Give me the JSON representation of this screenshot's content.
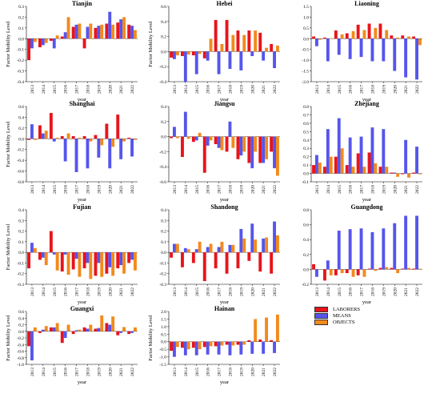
{
  "chart_data": [
    {
      "type": "bar",
      "title": "Tianjin",
      "xlabel": "year",
      "ylabel": "Factor Mobility Level",
      "categories": [
        "2013",
        "2014",
        "2015",
        "2016",
        "2017",
        "2018",
        "2019",
        "2020",
        "2021",
        "2022"
      ],
      "ylim": [
        -0.4,
        0.3
      ],
      "yticks": [
        "-0.4",
        "-0.3",
        "-0.2",
        "-0.1",
        "0.0",
        "0.1",
        "0.2",
        "0.3"
      ],
      "series": [
        {
          "name": "LABORERS",
          "values": [
            -0.2,
            -0.08,
            -0.02,
            0.02,
            0.11,
            -0.09,
            0.1,
            0.14,
            0.15,
            0.13
          ]
        },
        {
          "name": "MEANS",
          "values": [
            -0.09,
            -0.06,
            -0.09,
            0.06,
            0.13,
            0.11,
            0.12,
            0.25,
            0.18,
            0.12
          ]
        },
        {
          "name": "OBJECTS",
          "values": [
            -0.03,
            -0.04,
            0.03,
            0.2,
            0.14,
            0.14,
            0.13,
            0.13,
            0.2,
            0.08
          ]
        }
      ]
    },
    {
      "type": "bar",
      "title": "Hebei",
      "xlabel": "year",
      "ylabel": "Factor Mobility Level",
      "categories": [
        "2013",
        "2014",
        "2015",
        "2016",
        "2017",
        "2018",
        "2019",
        "2020",
        "2021",
        "2022"
      ],
      "ylim": [
        -0.4,
        0.6
      ],
      "yticks": [
        "-0.4",
        "-0.2",
        "0.0",
        "0.2",
        "0.4",
        "0.6"
      ],
      "series": [
        {
          "name": "LABORERS",
          "values": [
            -0.08,
            -0.06,
            -0.05,
            -0.09,
            0.42,
            0.42,
            0.28,
            0.28,
            0.25,
            0.1
          ]
        },
        {
          "name": "MEANS",
          "values": [
            -0.1,
            -0.4,
            -0.3,
            -0.12,
            -0.3,
            -0.23,
            -0.25,
            -0.06,
            -0.12,
            -0.22
          ]
        },
        {
          "name": "OBJECTS",
          "values": [
            -0.05,
            -0.04,
            -0.03,
            0.17,
            0.1,
            0.22,
            0.22,
            0.28,
            0.05,
            0.08
          ]
        }
      ]
    },
    {
      "type": "bar",
      "title": "Liaoning",
      "xlabel": "year",
      "ylabel": "",
      "categories": [
        "2013",
        "2014",
        "2015",
        "2016",
        "2017",
        "2018",
        "2019",
        "2020",
        "2021",
        "2022"
      ],
      "ylim": [
        -2.0,
        1.5
      ],
      "yticks": [
        "-2.0",
        "-1.5",
        "-1.0",
        "-0.5",
        "0.0",
        "0.5",
        "1.0",
        "1.5"
      ],
      "series": [
        {
          "name": "LABORERS",
          "values": [
            0.1,
            0.05,
            0.38,
            0.25,
            0.65,
            0.7,
            0.7,
            0.15,
            0.15,
            0.1
          ]
        },
        {
          "name": "MEANS",
          "values": [
            -0.35,
            -1.05,
            -0.75,
            -0.95,
            -0.85,
            -1.05,
            -1.05,
            -1.5,
            -1.8,
            -1.9
          ]
        },
        {
          "name": "OBJECTS",
          "values": [
            -0.05,
            0.02,
            0.2,
            0.35,
            0.4,
            0.5,
            0.4,
            0.05,
            0.1,
            -0.3
          ]
        }
      ]
    },
    {
      "type": "bar",
      "title": "Shanghai",
      "xlabel": "year",
      "ylabel": "Factor Mobility Level",
      "categories": [
        "2013",
        "2014",
        "2015",
        "2016",
        "2017",
        "2018",
        "2019",
        "2020",
        "2021",
        "2022"
      ],
      "ylim": [
        -0.8,
        0.6
      ],
      "yticks": [
        "-0.8",
        "-0.6",
        "-0.4",
        "-0.2",
        "0.0",
        "0.2",
        "0.4",
        "0.6"
      ],
      "series": [
        {
          "name": "LABORERS",
          "values": [
            -0.02,
            0.25,
            0.48,
            0.05,
            0.05,
            0.05,
            0.07,
            0.28,
            0.45,
            0.02
          ]
        },
        {
          "name": "MEANS",
          "values": [
            0.27,
            0.1,
            -0.05,
            -0.42,
            -0.62,
            -0.55,
            -0.35,
            -0.55,
            -0.38,
            -0.33
          ]
        },
        {
          "name": "OBJECTS",
          "values": [
            -0.02,
            0.15,
            0.02,
            0.1,
            0.02,
            -0.05,
            -0.12,
            -0.15,
            -0.05,
            -0.02
          ]
        }
      ]
    },
    {
      "type": "bar",
      "title": "Jiangsu",
      "xlabel": "year",
      "ylabel": "",
      "categories": [
        "2013",
        "2014",
        "2015",
        "2016",
        "2017",
        "2018",
        "2019",
        "2020",
        "2021",
        "2022"
      ],
      "ylim": [
        -0.6,
        0.4
      ],
      "yticks": [
        "-0.6",
        "-0.4",
        "-0.2",
        "0.0",
        "0.2",
        "0.4"
      ],
      "series": [
        {
          "name": "LABORERS",
          "values": [
            -0.02,
            -0.27,
            -0.07,
            -0.48,
            -0.1,
            -0.2,
            -0.3,
            -0.35,
            -0.35,
            -0.2
          ]
        },
        {
          "name": "MEANS",
          "values": [
            0.13,
            0.33,
            -0.05,
            -0.12,
            -0.15,
            0.2,
            -0.25,
            -0.42,
            -0.35,
            -0.42
          ]
        },
        {
          "name": "OBJECTS",
          "values": [
            -0.02,
            -0.03,
            0.05,
            -0.05,
            -0.18,
            -0.15,
            -0.2,
            -0.2,
            -0.3,
            -0.52
          ]
        }
      ]
    },
    {
      "type": "bar",
      "title": "Zhejiang",
      "xlabel": "year",
      "ylabel": "",
      "categories": [
        "2013",
        "2014",
        "2015",
        "2016",
        "2017",
        "2018",
        "2019",
        "2020",
        "2021",
        "2022"
      ],
      "ylim": [
        -0.1,
        0.8
      ],
      "yticks": [
        "-0.1",
        "0.0",
        "0.1",
        "0.2",
        "0.3",
        "0.4",
        "0.5",
        "0.6",
        "0.7",
        "0.8"
      ],
      "series": [
        {
          "name": "LABORERS",
          "values": [
            0.1,
            0.08,
            0.2,
            0.1,
            0.24,
            0.25,
            0.08,
            0.01,
            -0.01,
            0.01
          ]
        },
        {
          "name": "MEANS",
          "values": [
            0.22,
            0.53,
            0.66,
            0.43,
            0.44,
            0.55,
            0.53,
            0.01,
            0.4,
            0.32
          ]
        },
        {
          "name": "OBJECTS",
          "values": [
            0.13,
            0.2,
            0.3,
            0.08,
            0.08,
            0.12,
            0.08,
            -0.04,
            -0.05,
            -0.01
          ]
        }
      ]
    },
    {
      "type": "bar",
      "title": "Fujian",
      "xlabel": "year",
      "ylabel": "Factor Mobility Level",
      "categories": [
        "2013",
        "2014",
        "2015",
        "2016",
        "2017",
        "2018",
        "2019",
        "2020",
        "2021",
        "2022"
      ],
      "ylim": [
        -0.3,
        0.4
      ],
      "yticks": [
        "-0.3",
        "-0.2",
        "-0.1",
        "0.0",
        "0.1",
        "0.2",
        "0.3",
        "0.4"
      ],
      "series": [
        {
          "name": "LABORERS",
          "values": [
            -0.15,
            -0.07,
            0.2,
            -0.18,
            -0.16,
            -0.15,
            -0.22,
            -0.2,
            -0.15,
            -0.1
          ]
        },
        {
          "name": "MEANS",
          "values": [
            0.09,
            -0.05,
            -0.02,
            -0.02,
            -0.06,
            -0.1,
            -0.1,
            -0.14,
            -0.12,
            -0.07
          ]
        },
        {
          "name": "OBJECTS",
          "values": [
            0.04,
            -0.12,
            -0.17,
            -0.21,
            -0.23,
            -0.25,
            -0.23,
            -0.22,
            -0.2,
            -0.17
          ]
        }
      ]
    },
    {
      "type": "bar",
      "title": "Shandong",
      "xlabel": "year",
      "ylabel": "",
      "categories": [
        "2013",
        "2014",
        "2015",
        "2016",
        "2017",
        "2018",
        "2019",
        "2020",
        "2021",
        "2022"
      ],
      "ylim": [
        -0.3,
        0.4
      ],
      "yticks": [
        "-0.3",
        "-0.2",
        "-0.1",
        "0.0",
        "0.1",
        "0.2",
        "0.3",
        "0.4"
      ],
      "series": [
        {
          "name": "LABORERS",
          "values": [
            -0.05,
            -0.14,
            -0.1,
            -0.27,
            -0.15,
            -0.2,
            -0.15,
            -0.08,
            -0.18,
            -0.2
          ]
        },
        {
          "name": "MEANS",
          "values": [
            0.08,
            0.04,
            0.03,
            0.05,
            0.05,
            0.07,
            0.22,
            0.27,
            0.13,
            0.29
          ]
        },
        {
          "name": "OBJECTS",
          "values": [
            0.08,
            0.03,
            0.1,
            0.08,
            0.1,
            0.07,
            0.13,
            0.12,
            0.14,
            0.16
          ]
        }
      ]
    },
    {
      "type": "bar",
      "title": "Guangdong",
      "xlabel": "year",
      "ylabel": "",
      "categories": [
        "2013",
        "2014",
        "2015",
        "2016",
        "2017",
        "2018",
        "2019",
        "2020",
        "2021",
        "2022"
      ],
      "ylim": [
        -0.2,
        0.8
      ],
      "yticks": [
        "-0.2",
        "0.0",
        "0.2",
        "0.4",
        "0.6",
        "0.8"
      ],
      "series": [
        {
          "name": "LABORERS",
          "values": [
            0.07,
            -0.15,
            -0.08,
            -0.05,
            -0.08,
            0.01,
            0.02,
            0.02,
            0.01,
            0.01
          ]
        },
        {
          "name": "MEANS",
          "values": [
            -0.1,
            0.12,
            0.52,
            0.54,
            0.55,
            0.5,
            0.55,
            0.62,
            0.72,
            0.72
          ]
        },
        {
          "name": "OBJECTS",
          "values": [
            0.0,
            -0.08,
            -0.05,
            -0.1,
            -0.1,
            -0.02,
            0.03,
            -0.05,
            0.02,
            0.01
          ]
        }
      ]
    },
    {
      "type": "bar",
      "title": "Guangxi",
      "xlabel": "year",
      "ylabel": "Factor Mobility Level",
      "categories": [
        "2013",
        "2014",
        "2015",
        "2016",
        "2017",
        "2018",
        "2019",
        "2020",
        "2021",
        "2022"
      ],
      "ylim": [
        -1.0,
        0.6
      ],
      "yticks": [
        "-1.0",
        "-0.8",
        "-0.6",
        "-0.4",
        "-0.2",
        "0.0",
        "0.2",
        "0.4",
        "0.6"
      ],
      "series": [
        {
          "name": "LABORERS",
          "values": [
            -0.45,
            -0.05,
            0.12,
            -0.35,
            -0.08,
            0.12,
            0.08,
            0.25,
            -0.12,
            -0.08
          ]
        },
        {
          "name": "MEANS",
          "values": [
            -0.88,
            0.05,
            0.12,
            -0.2,
            0.03,
            0.08,
            0.1,
            0.2,
            -0.05,
            -0.05
          ]
        },
        {
          "name": "OBJECTS",
          "values": [
            0.12,
            0.16,
            0.25,
            0.2,
            0.05,
            0.2,
            0.48,
            0.45,
            0.13,
            0.12
          ]
        }
      ]
    },
    {
      "type": "bar",
      "title": "Hainan",
      "xlabel": "year",
      "ylabel": "Factor Mobility Level",
      "categories": [
        "2013",
        "2014",
        "2015",
        "2016",
        "2017",
        "2018",
        "2019",
        "2020",
        "2021",
        "2022"
      ],
      "ylim": [
        -1.5,
        2.0
      ],
      "yticks": [
        "-1.5",
        "-1.0",
        "-0.5",
        "0.0",
        "0.5",
        "1.0",
        "1.5",
        "2.0"
      ],
      "series": [
        {
          "name": "LABORERS",
          "values": [
            -0.6,
            -0.4,
            -0.4,
            -0.35,
            -0.3,
            -0.2,
            -0.2,
            0.1,
            0.15,
            0.1
          ]
        },
        {
          "name": "MEANS",
          "values": [
            -1.0,
            -0.9,
            -0.9,
            -0.85,
            -0.85,
            -0.9,
            -0.85,
            -0.8,
            -0.8,
            -0.75
          ]
        },
        {
          "name": "OBJECTS",
          "values": [
            -0.35,
            -0.5,
            -0.5,
            -0.3,
            -0.25,
            -0.25,
            -0.2,
            1.5,
            1.6,
            1.8
          ]
        }
      ]
    }
  ],
  "legend": {
    "items": [
      {
        "label": "LABORERS",
        "color": "#e8141b"
      },
      {
        "label": "MEANS",
        "color": "#5555ee"
      },
      {
        "label": "OBJECTS",
        "color": "#f28a1c"
      }
    ]
  },
  "colors": {
    "LABORERS": "#e8141b",
    "MEANS": "#5555ee",
    "OBJECTS": "#f28a1c"
  }
}
